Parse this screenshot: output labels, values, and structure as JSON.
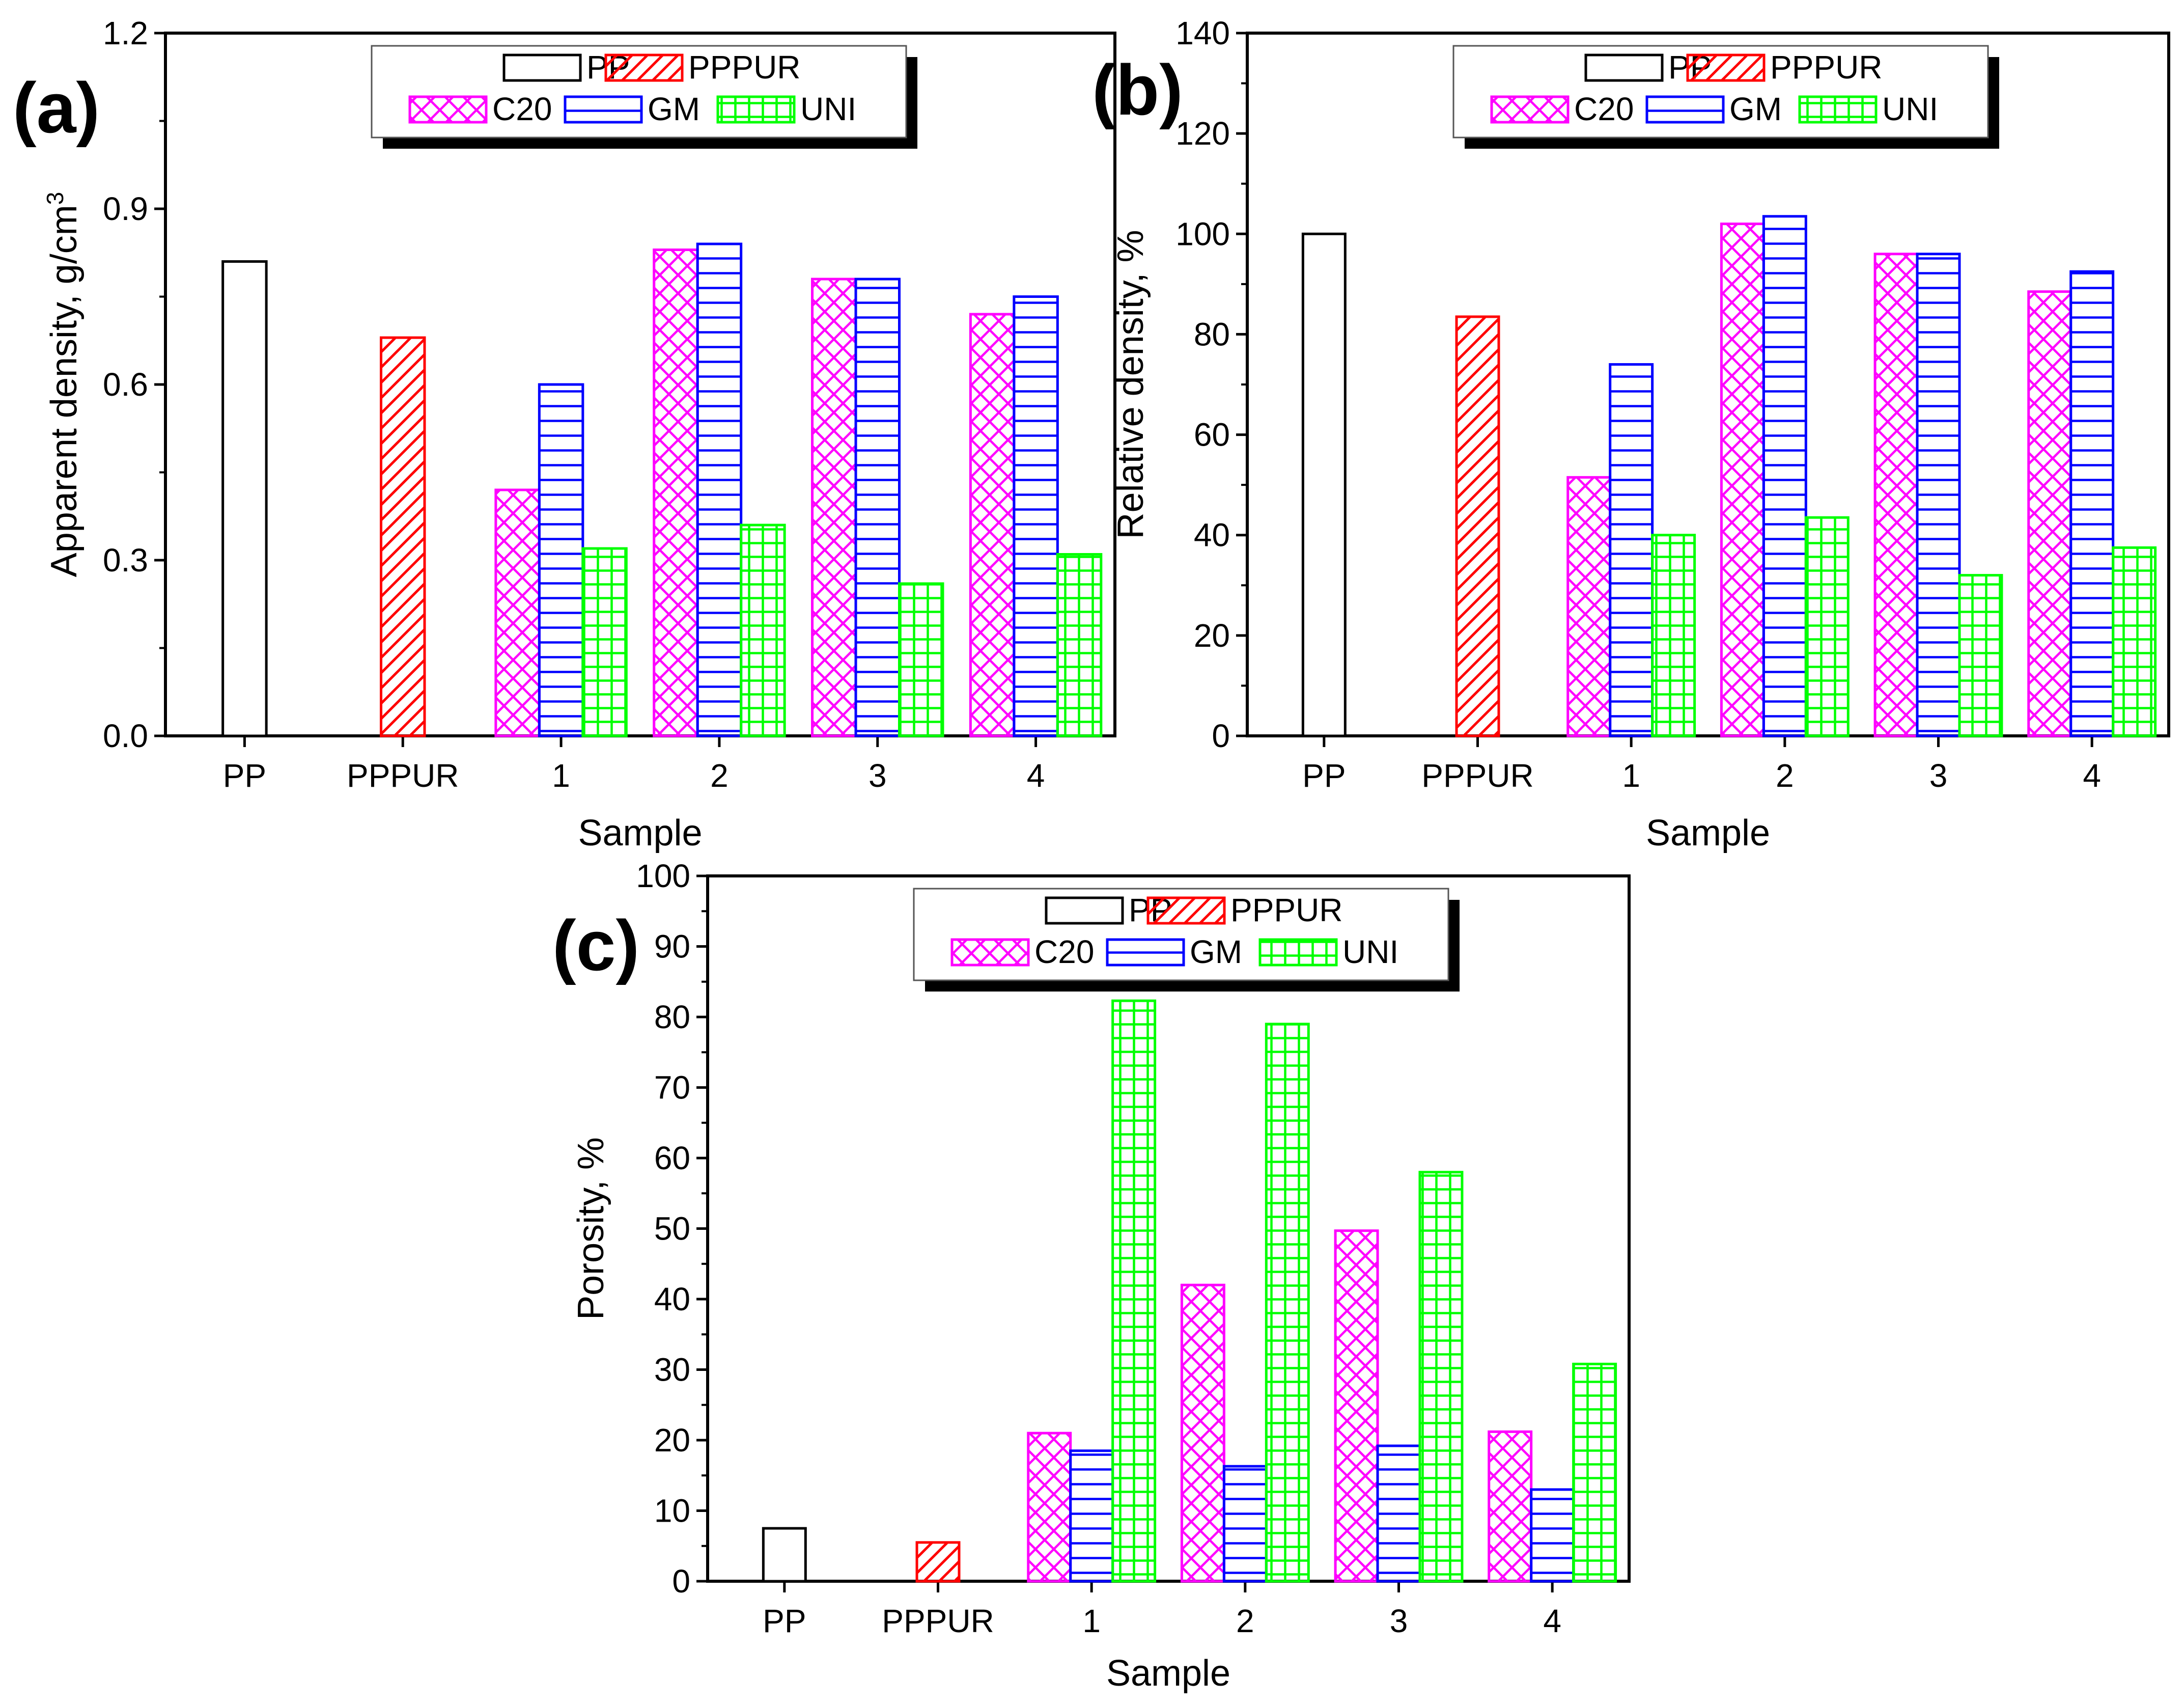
{
  "colors": {
    "PP": "#000000",
    "PPPUR": "#ff0000",
    "C20": "#ff00ff",
    "GM": "#0000ff",
    "UNI": "#00ff00"
  },
  "legend": {
    "row1": [
      "PP",
      "PPPUR"
    ],
    "row2": [
      "C20",
      "GM",
      "UNI"
    ]
  },
  "chart_data": [
    {
      "id": "a",
      "type": "bar",
      "panel_label": "(a)",
      "xlabel": "Sample",
      "ylabel": "Apparent density, g/cm",
      "ylabel_sup": "3",
      "ylim": [
        0,
        1.2
      ],
      "yticks": [
        "0.0",
        "0.3",
        "0.6",
        "0.9",
        "1.2"
      ],
      "categories": [
        "PP",
        "PPPUR",
        "1",
        "2",
        "3",
        "4"
      ],
      "series": [
        {
          "name": "PP",
          "values": [
            0.81,
            null,
            null,
            null,
            null,
            null
          ]
        },
        {
          "name": "PPPUR",
          "values": [
            null,
            0.68,
            null,
            null,
            null,
            null
          ]
        },
        {
          "name": "C20",
          "values": [
            null,
            null,
            0.42,
            0.83,
            0.78,
            0.72
          ]
        },
        {
          "name": "GM",
          "values": [
            null,
            null,
            0.6,
            0.84,
            0.78,
            0.75
          ]
        },
        {
          "name": "UNI",
          "values": [
            null,
            null,
            0.32,
            0.36,
            0.26,
            0.31
          ]
        }
      ]
    },
    {
      "id": "b",
      "type": "bar",
      "panel_label": "(b)",
      "xlabel": "Sample",
      "ylabel": "Relative density, %",
      "ylim": [
        0,
        140
      ],
      "yticks": [
        "0",
        "20",
        "40",
        "60",
        "80",
        "100",
        "120",
        "140"
      ],
      "categories": [
        "PP",
        "PPPUR",
        "1",
        "2",
        "3",
        "4"
      ],
      "series": [
        {
          "name": "PP",
          "values": [
            100,
            null,
            null,
            null,
            null,
            null
          ]
        },
        {
          "name": "PPPUR",
          "values": [
            null,
            83.5,
            null,
            null,
            null,
            null
          ]
        },
        {
          "name": "C20",
          "values": [
            null,
            null,
            51.5,
            102,
            96,
            88.5
          ]
        },
        {
          "name": "GM",
          "values": [
            null,
            null,
            74,
            103.5,
            96,
            92.5
          ]
        },
        {
          "name": "UNI",
          "values": [
            null,
            null,
            40,
            43.5,
            32,
            37.5
          ]
        }
      ]
    },
    {
      "id": "c",
      "type": "bar",
      "panel_label": "(c)",
      "xlabel": "Sample",
      "ylabel": "Porosity, %",
      "ylim": [
        0,
        100
      ],
      "yticks": [
        "0",
        "10",
        "20",
        "30",
        "40",
        "50",
        "60",
        "70",
        "80",
        "90",
        "100"
      ],
      "categories": [
        "PP",
        "PPPUR",
        "1",
        "2",
        "3",
        "4"
      ],
      "series": [
        {
          "name": "PP",
          "values": [
            7.5,
            null,
            null,
            null,
            null,
            null
          ]
        },
        {
          "name": "PPPUR",
          "values": [
            null,
            5.5,
            null,
            null,
            null,
            null
          ]
        },
        {
          "name": "C20",
          "values": [
            null,
            null,
            21,
            42,
            49.7,
            21.2
          ]
        },
        {
          "name": "GM",
          "values": [
            null,
            null,
            18.5,
            16.3,
            19.2,
            13
          ]
        },
        {
          "name": "UNI",
          "values": [
            null,
            null,
            82.3,
            79,
            58,
            30.8
          ]
        }
      ]
    }
  ]
}
